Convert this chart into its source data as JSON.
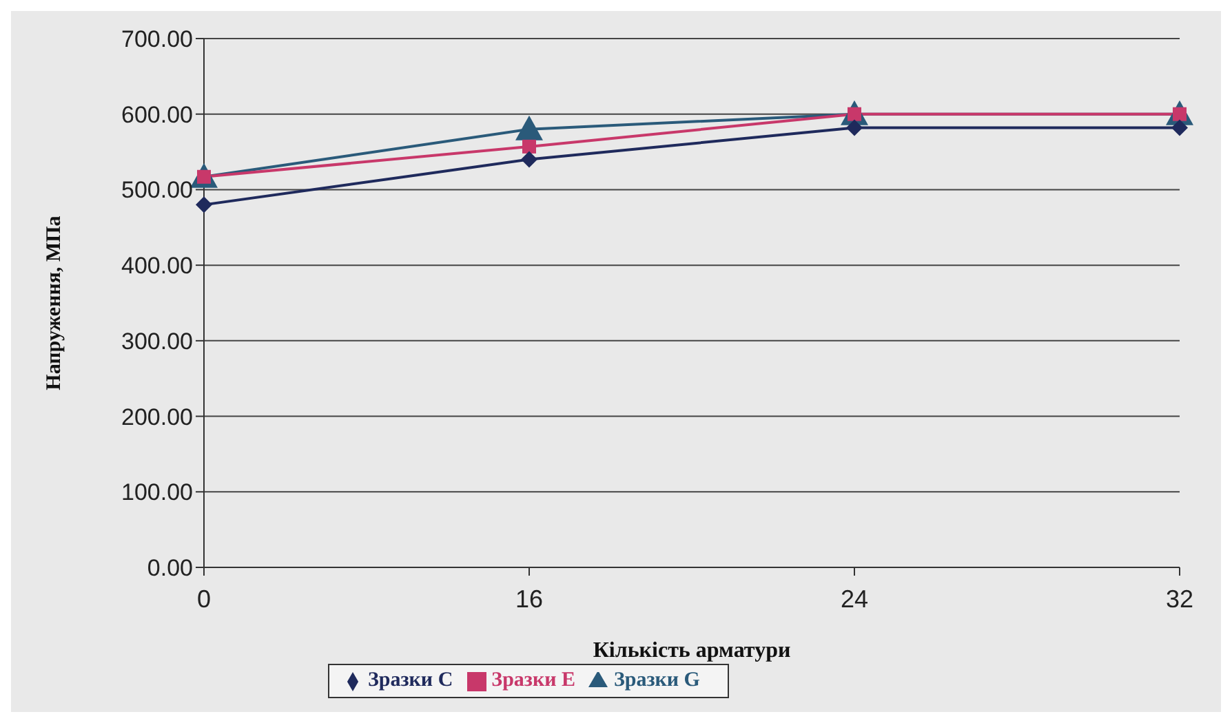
{
  "chart_data": {
    "type": "line",
    "xlabel": "Кількість арматури",
    "ylabel": "Напруження, МПа",
    "categories": [
      "0",
      "16",
      "24",
      "32"
    ],
    "series": [
      {
        "name": "Зразки C",
        "color": "#1f2a5c",
        "marker": "diamond",
        "values": [
          480,
          540,
          582,
          582
        ]
      },
      {
        "name": "Зразки E",
        "color": "#c8386a",
        "marker": "square",
        "values": [
          517,
          557,
          600,
          600
        ]
      },
      {
        "name": "Зразки G",
        "color": "#2a5a7a",
        "marker": "triangle",
        "values": [
          517,
          580,
          600,
          600
        ]
      }
    ],
    "ylim": [
      0,
      700
    ],
    "yticks": [
      {
        "value": 0,
        "label": "0.00"
      },
      {
        "value": 100,
        "label": "100.00"
      },
      {
        "value": 200,
        "label": "200.00"
      },
      {
        "value": 300,
        "label": "300.00"
      },
      {
        "value": 400,
        "label": "400.00"
      },
      {
        "value": 500,
        "label": "500.00"
      },
      {
        "value": 600,
        "label": "600.00"
      },
      {
        "value": 700,
        "label": "700.00"
      }
    ],
    "grid": "y",
    "legend": "bottom"
  }
}
